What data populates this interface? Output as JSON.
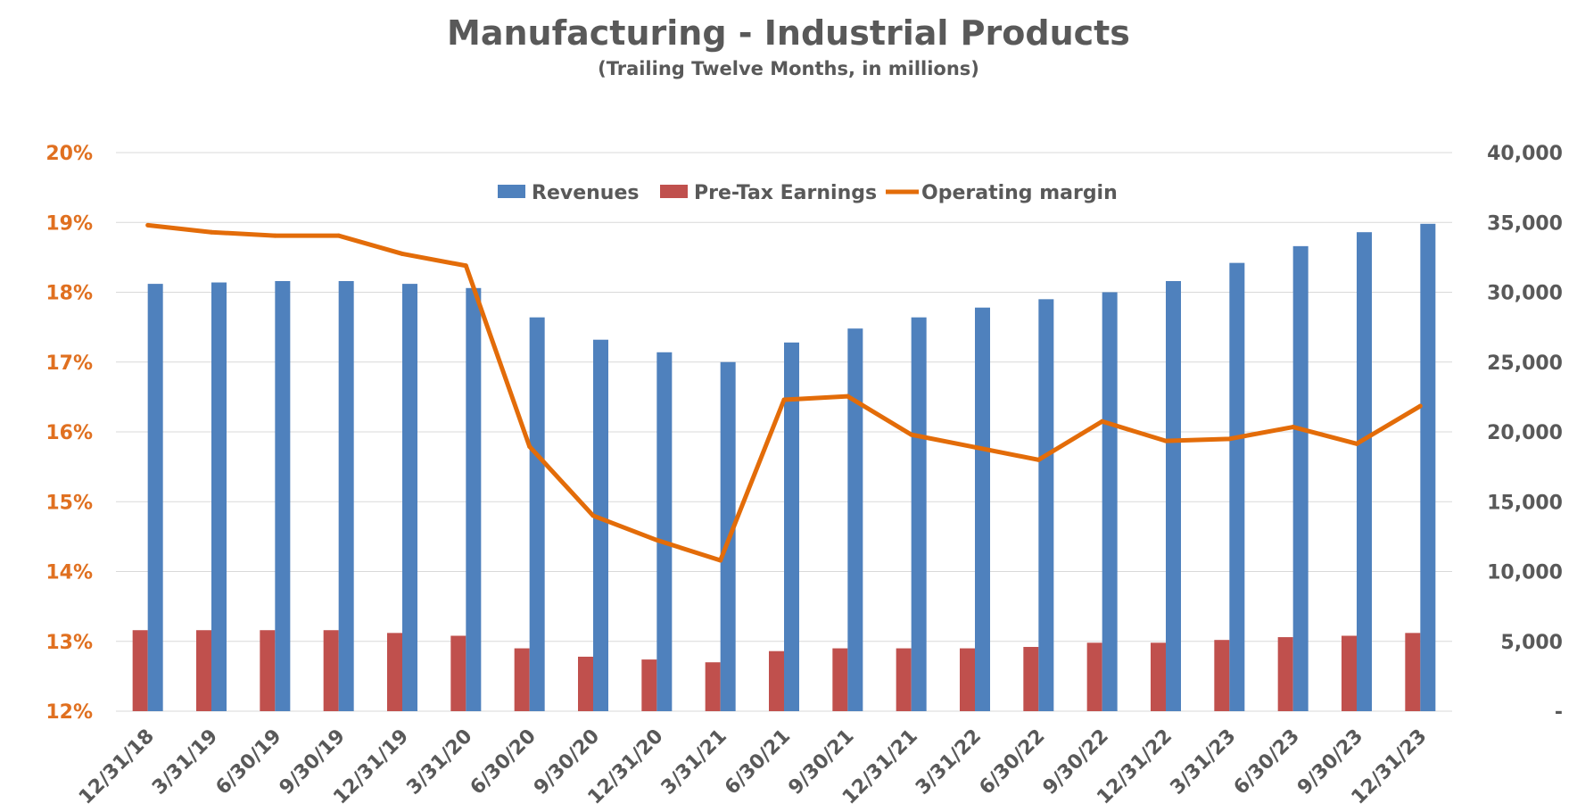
{
  "chart_data": {
    "type": "bar",
    "title": "Manufacturing - Industrial Products",
    "subtitle": "(Trailing Twelve Months, in millions)",
    "categories": [
      "12/31/18",
      "3/31/19",
      "6/30/19",
      "9/30/19",
      "12/31/19",
      "3/31/20",
      "6/30/20",
      "9/30/20",
      "12/31/20",
      "3/31/21",
      "6/30/21",
      "9/30/21",
      "12/31/21",
      "3/31/22",
      "6/30/22",
      "9/30/22",
      "12/31/22",
      "3/31/23",
      "6/30/23",
      "9/30/23",
      "12/31/23"
    ],
    "series": [
      {
        "name": "Revenues",
        "type": "bar",
        "axis": "right",
        "color": "#4f81bd",
        "values": [
          30600,
          30700,
          30800,
          30800,
          30600,
          30300,
          28200,
          26600,
          25700,
          25000,
          26400,
          27400,
          28200,
          28900,
          29500,
          30000,
          30800,
          32100,
          33300,
          34300,
          34900
        ]
      },
      {
        "name": "Pre-Tax Earnings",
        "type": "bar",
        "axis": "right",
        "color": "#c0504d",
        "values": [
          5800,
          5800,
          5800,
          5800,
          5600,
          5400,
          4500,
          3900,
          3700,
          3500,
          4300,
          4500,
          4500,
          4500,
          4600,
          4900,
          4900,
          5100,
          5300,
          5400,
          5600
        ]
      },
      {
        "name": "Operating margin",
        "type": "line",
        "axis": "left",
        "color": "#e36c09",
        "values": [
          18.96,
          18.86,
          18.81,
          18.81,
          18.55,
          18.38,
          15.79,
          14.8,
          14.45,
          14.16,
          16.46,
          16.51,
          15.96,
          15.78,
          15.6,
          16.15,
          15.87,
          15.9,
          16.07,
          15.83,
          16.37
        ]
      }
    ],
    "y_left": {
      "ticks": [
        "20%",
        "19%",
        "18%",
        "17%",
        "16%",
        "15%",
        "14%",
        "13%",
        "12%"
      ],
      "min": 12,
      "max": 20
    },
    "y_right": {
      "ticks": [
        "40,000",
        "35,000",
        "30,000",
        "25,000",
        "20,000",
        "15,000",
        "10,000",
        "5,000",
        "-"
      ],
      "min": 0,
      "max": 40000
    },
    "legend": {
      "placement": "top-center",
      "items": [
        "Revenues",
        "Pre-Tax Earnings",
        "Operating margin"
      ]
    },
    "grid": true
  }
}
